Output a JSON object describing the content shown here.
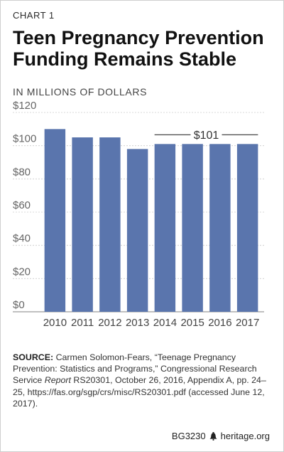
{
  "header": {
    "chart_number": "CHART 1",
    "title_line1": "Teen Pregnancy Prevention",
    "title_line2": "Funding Remains Stable",
    "unit_label": "IN MILLIONS OF DOLLARS"
  },
  "chart_data": {
    "type": "bar",
    "categories": [
      "2010",
      "2011",
      "2012",
      "2013",
      "2014",
      "2015",
      "2016",
      "2017"
    ],
    "values": [
      110,
      105,
      105,
      98,
      101,
      101,
      101,
      101
    ],
    "ylim": [
      0,
      120
    ],
    "yticks": [
      "$0",
      "$20",
      "$40",
      "$60",
      "$80",
      "$100",
      "$120"
    ],
    "grid": true,
    "bar_color": "#5a75ad",
    "annotation": {
      "label": "$101",
      "from_category": "2014",
      "to_category": "2017",
      "value": 101
    }
  },
  "source": {
    "label": "SOURCE:",
    "text_part1": " Carmen Solomon-Fears, “Teenage Pregnancy Prevention: Statistics and Programs,” Congressional Research Service ",
    "text_italic": "Report",
    "text_part2": " RS20301, October 26, 2016, Appendix A, pp. 24–25, https://fas.org/sgp/crs/misc/RS20301.pdf (accessed June 12, 2017)."
  },
  "footer": {
    "report_id": "BG3230",
    "icon": "liberty-bell-icon",
    "site": "heritage.org"
  }
}
